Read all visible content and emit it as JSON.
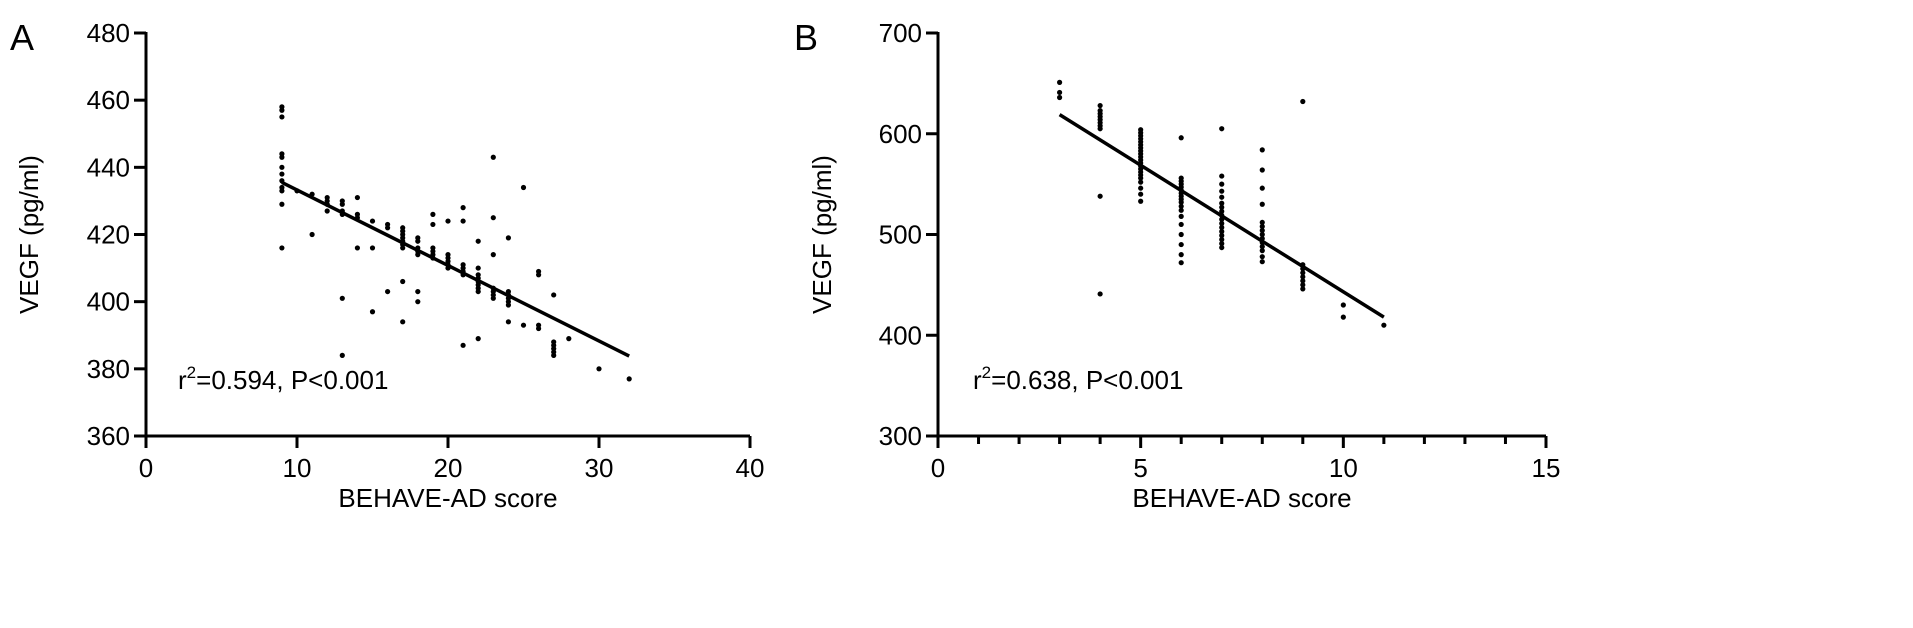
{
  "chart_data": [
    {
      "type": "scatter",
      "panel_label": "A",
      "xlabel": "BEHAVE-AD score",
      "ylabel": "VEGF (pg/ml)",
      "xlim": [
        0,
        40
      ],
      "ylim": [
        360,
        480
      ],
      "xticks": [
        0,
        10,
        20,
        30,
        40
      ],
      "yticks": [
        360,
        380,
        400,
        420,
        440,
        460,
        480
      ],
      "annotation": {
        "r_symbol": "r",
        "r_exponent": "2",
        "text": "=0.594, P<0.001"
      },
      "fit_line": {
        "x": [
          9,
          32
        ],
        "y": [
          435.5,
          383.8
        ]
      },
      "points": [
        [
          9,
          458
        ],
        [
          9,
          457
        ],
        [
          9,
          455
        ],
        [
          9,
          444
        ],
        [
          9,
          443
        ],
        [
          9,
          440
        ],
        [
          9,
          438
        ],
        [
          9,
          436
        ],
        [
          9,
          434
        ],
        [
          9,
          433
        ],
        [
          9,
          429
        ],
        [
          9,
          416
        ],
        [
          10,
          433
        ],
        [
          11,
          432
        ],
        [
          11,
          420
        ],
        [
          12,
          431
        ],
        [
          12,
          430
        ],
        [
          12,
          429
        ],
        [
          12,
          427
        ],
        [
          13,
          430
        ],
        [
          13,
          429
        ],
        [
          13,
          427
        ],
        [
          13,
          426
        ],
        [
          13,
          401
        ],
        [
          13,
          384
        ],
        [
          14,
          431
        ],
        [
          14,
          426
        ],
        [
          14,
          425
        ],
        [
          14,
          416
        ],
        [
          15,
          424
        ],
        [
          15,
          416
        ],
        [
          15,
          397
        ],
        [
          16,
          423
        ],
        [
          16,
          422
        ],
        [
          16,
          403
        ],
        [
          17,
          422
        ],
        [
          17,
          421
        ],
        [
          17,
          420
        ],
        [
          17,
          419
        ],
        [
          17,
          418
        ],
        [
          17,
          417
        ],
        [
          17,
          416
        ],
        [
          17,
          406
        ],
        [
          17,
          394
        ],
        [
          18,
          419
        ],
        [
          18,
          418
        ],
        [
          18,
          416
        ],
        [
          18,
          415
        ],
        [
          18,
          414
        ],
        [
          18,
          403
        ],
        [
          18,
          400
        ],
        [
          19,
          426
        ],
        [
          19,
          423
        ],
        [
          19,
          416
        ],
        [
          19,
          415
        ],
        [
          19,
          414
        ],
        [
          19,
          413
        ],
        [
          20,
          424
        ],
        [
          20,
          414
        ],
        [
          20,
          413
        ],
        [
          20,
          412
        ],
        [
          20,
          411
        ],
        [
          20,
          410
        ],
        [
          21,
          428
        ],
        [
          21,
          424
        ],
        [
          21,
          411
        ],
        [
          21,
          410
        ],
        [
          21,
          409
        ],
        [
          21,
          408
        ],
        [
          21,
          387
        ],
        [
          22,
          418
        ],
        [
          22,
          410
        ],
        [
          22,
          408
        ],
        [
          22,
          407
        ],
        [
          22,
          406
        ],
        [
          22,
          405
        ],
        [
          22,
          404
        ],
        [
          22,
          403
        ],
        [
          22,
          389
        ],
        [
          23,
          443
        ],
        [
          23,
          425
        ],
        [
          23,
          414
        ],
        [
          23,
          404
        ],
        [
          23,
          403
        ],
        [
          23,
          402
        ],
        [
          23,
          401
        ],
        [
          24,
          419
        ],
        [
          24,
          403
        ],
        [
          24,
          402
        ],
        [
          24,
          401
        ],
        [
          24,
          400
        ],
        [
          24,
          399
        ],
        [
          24,
          394
        ],
        [
          25,
          434
        ],
        [
          25,
          393
        ],
        [
          26,
          409
        ],
        [
          26,
          408
        ],
        [
          26,
          393
        ],
        [
          26,
          392
        ],
        [
          27,
          402
        ],
        [
          27,
          388
        ],
        [
          27,
          387
        ],
        [
          27,
          386
        ],
        [
          27,
          385
        ],
        [
          27,
          384
        ],
        [
          28,
          389
        ],
        [
          30,
          380
        ],
        [
          32,
          377
        ]
      ]
    },
    {
      "type": "scatter",
      "panel_label": "B",
      "xlabel": "BEHAVE-AD score",
      "ylabel": "VEGF (pg/ml)",
      "xlim": [
        0,
        15
      ],
      "ylim": [
        300,
        700
      ],
      "xticks": [
        0,
        5,
        10,
        15
      ],
      "yticks": [
        300,
        400,
        500,
        600,
        700
      ],
      "annotation": {
        "r_symbol": "r",
        "r_exponent": "2",
        "text": "=0.638, P<0.001"
      },
      "fit_line": {
        "x": [
          3,
          11
        ],
        "y": [
          619,
          418
        ]
      },
      "points": [
        [
          3,
          651
        ],
        [
          3,
          641
        ],
        [
          3,
          636
        ],
        [
          4,
          628
        ],
        [
          4,
          623
        ],
        [
          4,
          620
        ],
        [
          4,
          617
        ],
        [
          4,
          614
        ],
        [
          4,
          611
        ],
        [
          4,
          608
        ],
        [
          4,
          605
        ],
        [
          4,
          538
        ],
        [
          4,
          441
        ],
        [
          5,
          604
        ],
        [
          5,
          601
        ],
        [
          5,
          598
        ],
        [
          5,
          595
        ],
        [
          5,
          592
        ],
        [
          5,
          589
        ],
        [
          5,
          586
        ],
        [
          5,
          583
        ],
        [
          5,
          580
        ],
        [
          5,
          577
        ],
        [
          5,
          574
        ],
        [
          5,
          571
        ],
        [
          5,
          568
        ],
        [
          5,
          565
        ],
        [
          5,
          562
        ],
        [
          5,
          559
        ],
        [
          5,
          556
        ],
        [
          5,
          552
        ],
        [
          5,
          546
        ],
        [
          5,
          540
        ],
        [
          5,
          533
        ],
        [
          6,
          596
        ],
        [
          6,
          556
        ],
        [
          6,
          553
        ],
        [
          6,
          550
        ],
        [
          6,
          547
        ],
        [
          6,
          544
        ],
        [
          6,
          541
        ],
        [
          6,
          538
        ],
        [
          6,
          535
        ],
        [
          6,
          532
        ],
        [
          6,
          528
        ],
        [
          6,
          524
        ],
        [
          6,
          518
        ],
        [
          6,
          510
        ],
        [
          6,
          500
        ],
        [
          6,
          490
        ],
        [
          6,
          480
        ],
        [
          6,
          472
        ],
        [
          7,
          605
        ],
        [
          7,
          558
        ],
        [
          7,
          550
        ],
        [
          7,
          543
        ],
        [
          7,
          537
        ],
        [
          7,
          531
        ],
        [
          7,
          527
        ],
        [
          7,
          523
        ],
        [
          7,
          519
        ],
        [
          7,
          515
        ],
        [
          7,
          511
        ],
        [
          7,
          507
        ],
        [
          7,
          503
        ],
        [
          7,
          499
        ],
        [
          7,
          495
        ],
        [
          7,
          491
        ],
        [
          7,
          487
        ],
        [
          8,
          584
        ],
        [
          8,
          564
        ],
        [
          8,
          546
        ],
        [
          8,
          530
        ],
        [
          8,
          512
        ],
        [
          8,
          508
        ],
        [
          8,
          504
        ],
        [
          8,
          500
        ],
        [
          8,
          496
        ],
        [
          8,
          492
        ],
        [
          8,
          488
        ],
        [
          8,
          484
        ],
        [
          8,
          478
        ],
        [
          8,
          473
        ],
        [
          9,
          632
        ],
        [
          9,
          470
        ],
        [
          9,
          466
        ],
        [
          9,
          462
        ],
        [
          9,
          458
        ],
        [
          9,
          454
        ],
        [
          9,
          450
        ],
        [
          9,
          446
        ],
        [
          10,
          430
        ],
        [
          10,
          418
        ],
        [
          11,
          410
        ]
      ]
    }
  ]
}
